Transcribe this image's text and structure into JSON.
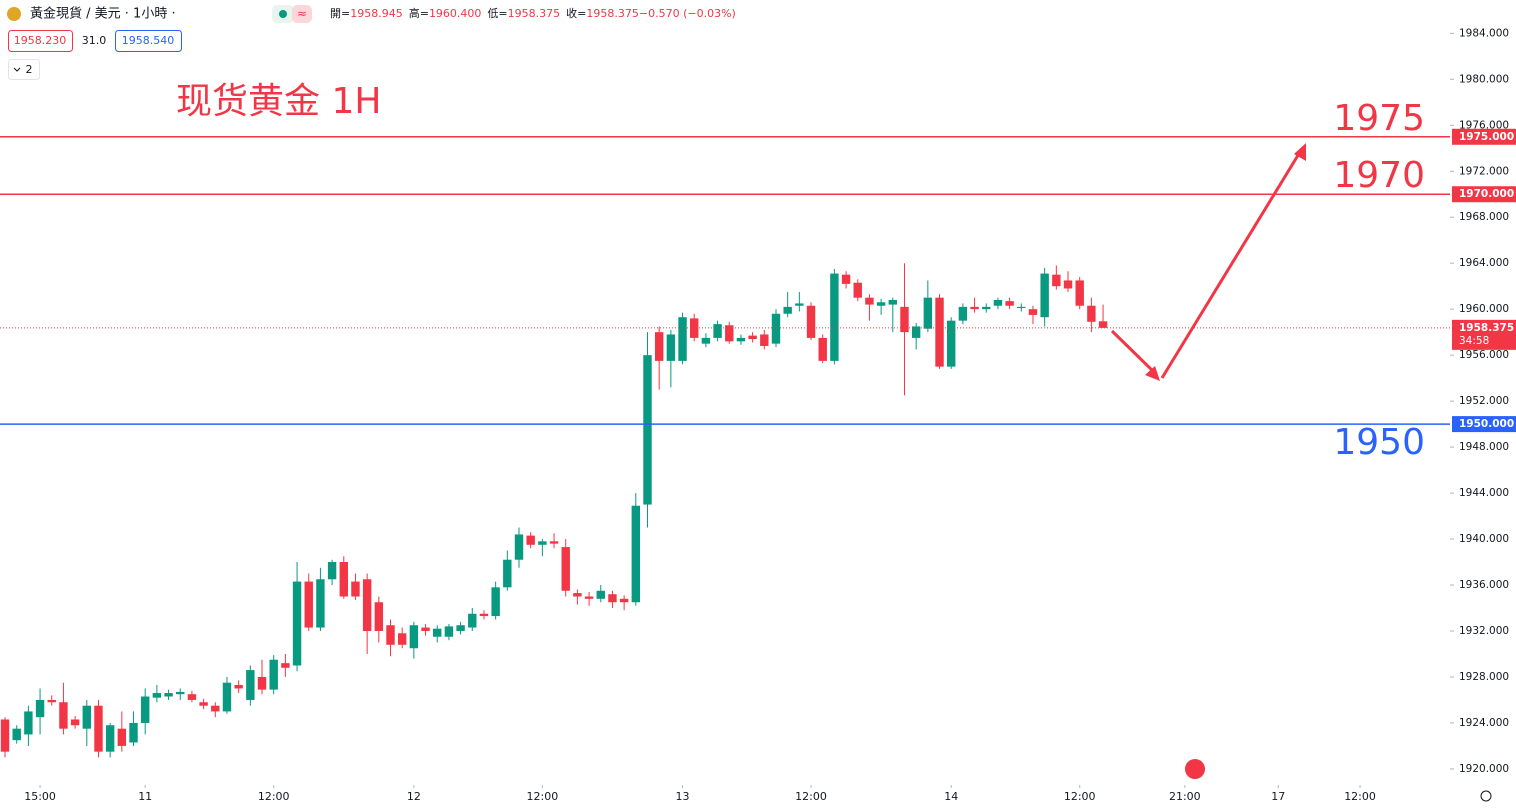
{
  "chart_data": {
    "type": "candlestick",
    "symbol": "黃金現貨 / 美元 · 1小時 ·",
    "ohlc_legend": [
      {
        "label": "開=",
        "value": "1958.945"
      },
      {
        "label": "高=",
        "value": "1960.400"
      },
      {
        "label": "低=",
        "value": "1958.375"
      },
      {
        "label": "收=",
        "value": "1958.375"
      },
      {
        "label": "",
        "value": "−0.570 (−0.03%)"
      }
    ],
    "bid": "1958.230",
    "spread": "31.0",
    "ask": "1958.540",
    "indicator_count": "2",
    "annotation": "现货黄金 1H",
    "up_color": "#089981",
    "down_color": "#f23645",
    "open": [
      1924.3,
      1922.5,
      1923,
      1924.5,
      1926,
      1925.8,
      1924.3,
      1923.5,
      1925.5,
      1921.5,
      1923.5,
      1922.3,
      1924,
      1926.2,
      1926.3,
      1926.5,
      1926.5,
      1925.8,
      1925.5,
      1925,
      1927.3,
      1926,
      1928,
      1926.9,
      1929.2,
      1929,
      1936.3,
      1932.3,
      1936.5,
      1938,
      1936.3,
      1936.5,
      1934.5,
      1932.5,
      1931.8,
      1930.5,
      1932.3,
      1931.5,
      1931.5,
      1932,
      1932.3,
      1933.5,
      1933.3,
      1935.8,
      1938.2,
      1940.3,
      1939.5,
      1939.8,
      1939.3,
      1935.3,
      1935,
      1934.8,
      1935.2,
      1934.8,
      1934.5,
      1943,
      1958,
      1955.5,
      1955.5,
      1959.2,
      1957,
      1957.5,
      1958.6,
      1957.2,
      1957.7,
      1957.8,
      1957,
      1959.6,
      1960.3,
      1960.3,
      1957.5,
      1955.5,
      1963,
      1962.3,
      1961,
      1960.3,
      1960.4,
      1960.2,
      1957.5,
      1958.3,
      1961,
      1955,
      1959,
      1960.2,
      1960,
      1960.3,
      1960.7,
      1960.1,
      1960,
      1959.3,
      1963,
      1962.5,
      1962.5,
      1960.3,
      1958.945
    ],
    "high": [
      1924.5,
      1923.8,
      1925.5,
      1927,
      1926.4,
      1927.5,
      1924.6,
      1926,
      1926,
      1924,
      1925,
      1925,
      1927,
      1927.3,
      1926.9,
      1927,
      1926.8,
      1926.1,
      1925.8,
      1928,
      1927.7,
      1929,
      1929.5,
      1929.9,
      1930,
      1938,
      1937,
      1937.5,
      1938.2,
      1938.5,
      1937,
      1937,
      1935,
      1933,
      1932.3,
      1932.8,
      1932.6,
      1932.5,
      1932.6,
      1932.8,
      1934,
      1933.8,
      1936.3,
      1939,
      1941,
      1940.6,
      1940,
      1940.5,
      1940,
      1935.6,
      1935.4,
      1936,
      1935.5,
      1935.1,
      1944,
      1958,
      1958.5,
      1958.2,
      1959.7,
      1959.6,
      1957.9,
      1959,
      1958.9,
      1957.8,
      1958,
      1958.2,
      1960,
      1961.5,
      1961.5,
      1960.6,
      1957.8,
      1963.5,
      1963.3,
      1962.6,
      1961.3,
      1960.9,
      1961,
      1964,
      1958.8,
      1962.5,
      1961.3,
      1959.3,
      1960.5,
      1961,
      1960.5,
      1961,
      1961,
      1960.5,
      1960.3,
      1963.6,
      1963.8,
      1963.3,
      1962.8,
      1961,
      1960.4
    ],
    "low": [
      1921,
      1922.2,
      1922,
      1923,
      1925.5,
      1923,
      1923.5,
      1922,
      1921,
      1921,
      1921.5,
      1922,
      1923,
      1925.8,
      1926,
      1926,
      1925.8,
      1925.2,
      1924.5,
      1924.8,
      1926.6,
      1925.5,
      1926.5,
      1926.5,
      1928,
      1928.5,
      1932,
      1932,
      1936,
      1934.8,
      1934.7,
      1930,
      1931,
      1929.8,
      1930.5,
      1929.6,
      1931.6,
      1931,
      1931.2,
      1931.7,
      1932,
      1933,
      1933,
      1935.5,
      1937.5,
      1939.2,
      1938.5,
      1939.2,
      1935,
      1934.3,
      1934.2,
      1934.5,
      1934,
      1933.8,
      1934.2,
      1941,
      1953,
      1953.2,
      1955.2,
      1957.2,
      1956.7,
      1957.2,
      1957,
      1956.9,
      1957.1,
      1956.5,
      1956.7,
      1959.3,
      1959.8,
      1957.3,
      1955.3,
      1955.2,
      1961.8,
      1960.7,
      1959,
      1959.5,
      1958,
      1952.5,
      1956.5,
      1958,
      1954.8,
      1954.8,
      1958.7,
      1959.7,
      1959.7,
      1960,
      1960,
      1959.8,
      1958.7,
      1958.5,
      1961.7,
      1961.5,
      1960,
      1958,
      1958.375
    ],
    "close": [
      1921.5,
      1923.5,
      1925,
      1926,
      1925.8,
      1923.5,
      1923.8,
      1925.5,
      1921.5,
      1923.8,
      1922,
      1924,
      1926.3,
      1926.6,
      1926.6,
      1926.7,
      1926,
      1925.5,
      1925,
      1927.5,
      1927,
      1928.6,
      1926.9,
      1929.5,
      1928.8,
      1936.3,
      1932.3,
      1936.5,
      1938,
      1935,
      1935,
      1932,
      1932,
      1930.8,
      1930.8,
      1932.5,
      1932,
      1932.2,
      1932.4,
      1932.5,
      1933.5,
      1933.3,
      1935.8,
      1938.2,
      1940.4,
      1939.5,
      1939.8,
      1939.6,
      1935.5,
      1935,
      1934.8,
      1935.5,
      1934.5,
      1934.5,
      1942.9,
      1956,
      1955.5,
      1957.8,
      1959.3,
      1957.5,
      1957.5,
      1958.7,
      1957.2,
      1957.5,
      1957.4,
      1956.8,
      1959.6,
      1960.2,
      1960.5,
      1957.5,
      1955.5,
      1963.1,
      1962.2,
      1961,
      1960.4,
      1960.6,
      1960.8,
      1958,
      1958.5,
      1961,
      1955,
      1959,
      1960.2,
      1960,
      1960.2,
      1960.8,
      1960.3,
      1960.2,
      1959.5,
      1963.1,
      1962,
      1961.8,
      1960.3,
      1958.9,
      1958.375
    ],
    "xlim": [
      -0.43,
      123.7
    ],
    "xticks": [
      {
        "value": 3,
        "label": "15:00"
      },
      {
        "value": 12,
        "label": "11"
      },
      {
        "value": 23,
        "label": "12:00"
      },
      {
        "value": 35,
        "label": "12"
      },
      {
        "value": 46,
        "label": "12:00"
      },
      {
        "value": 58,
        "label": "13"
      },
      {
        "value": 69,
        "label": "12:00"
      },
      {
        "value": 81,
        "label": "14"
      },
      {
        "value": 92,
        "label": "12:00"
      },
      {
        "value": 101,
        "label": "21:00"
      },
      {
        "value": 109,
        "label": "17"
      },
      {
        "value": 116,
        "label": "12:00"
      }
    ],
    "ylim": [
      1918.6,
      1986.9
    ],
    "yticks": [
      {
        "value": 1920,
        "label": "1920.000"
      },
      {
        "value": 1924,
        "label": "1924.000"
      },
      {
        "value": 1928,
        "label": "1928.000"
      },
      {
        "value": 1932,
        "label": "1932.000"
      },
      {
        "value": 1936,
        "label": "1936.000"
      },
      {
        "value": 1940,
        "label": "1940.000"
      },
      {
        "value": 1944,
        "label": "1944.000"
      },
      {
        "value": 1948,
        "label": "1948.000"
      },
      {
        "value": 1952,
        "label": "1952.000"
      },
      {
        "value": 1956,
        "label": "1956.000"
      },
      {
        "value": 1960,
        "label": "1960.000"
      },
      {
        "value": 1964,
        "label": "1964.000"
      },
      {
        "value": 1968,
        "label": "1968.000"
      },
      {
        "value": 1972,
        "label": "1972.000"
      },
      {
        "value": 1976,
        "label": "1976.000"
      },
      {
        "value": 1980,
        "label": "1980.000"
      },
      {
        "value": 1984,
        "label": "1984.000"
      }
    ],
    "grid": false,
    "levels": [
      {
        "value": 1975,
        "text": "1975",
        "axis_label": "1975.000",
        "color": "#f23645"
      },
      {
        "value": 1970,
        "text": "1970",
        "axis_label": "1970.000",
        "color": "#f23645"
      },
      {
        "value": 1950,
        "text": "1950",
        "axis_label": "1950.000",
        "color": "#2962ff"
      }
    ],
    "last": {
      "value": 1958.375,
      "label": "1958.375",
      "countdown": "34:58"
    }
  }
}
